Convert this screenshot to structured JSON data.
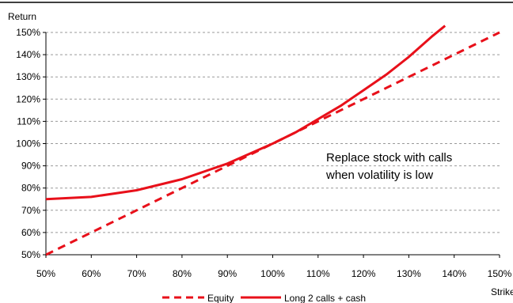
{
  "chart_data": {
    "type": "line",
    "title": "",
    "xlabel": "Strike",
    "ylabel": "Return",
    "x_ticks": [
      "50%",
      "60%",
      "70%",
      "80%",
      "90%",
      "100%",
      "110%",
      "120%",
      "130%",
      "140%",
      "150%"
    ],
    "y_ticks": [
      "50%",
      "60%",
      "70%",
      "80%",
      "90%",
      "100%",
      "110%",
      "120%",
      "130%",
      "140%",
      "150%"
    ],
    "xlim": [
      50,
      150
    ],
    "ylim": [
      50,
      150
    ],
    "grid": "horizontal dashed",
    "legend_position": "bottom",
    "annotation": [
      "Replace stock with calls",
      "when volatility is low"
    ],
    "series": [
      {
        "name": "Equity",
        "style": "dashed",
        "color": "#e8101a",
        "points": [
          [
            50,
            50
          ],
          [
            150,
            150
          ]
        ]
      },
      {
        "name": "Long 2 calls + cash",
        "style": "solid",
        "color": "#e8101a",
        "points": [
          [
            50,
            75
          ],
          [
            60,
            76
          ],
          [
            70,
            79
          ],
          [
            80,
            84
          ],
          [
            90,
            91
          ],
          [
            100,
            100
          ],
          [
            105,
            105
          ],
          [
            110,
            111
          ],
          [
            115,
            117
          ],
          [
            120,
            124
          ],
          [
            125,
            131
          ],
          [
            130,
            139
          ],
          [
            135,
            148
          ],
          [
            138,
            153
          ]
        ]
      }
    ]
  }
}
